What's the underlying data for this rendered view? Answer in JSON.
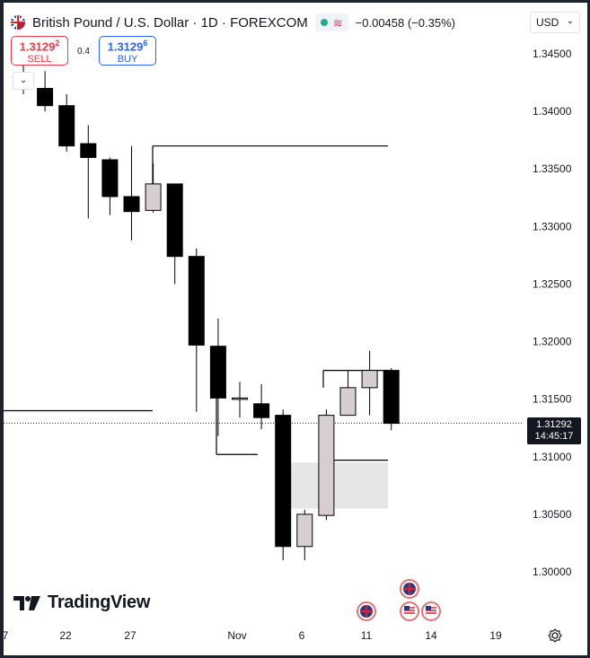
{
  "header": {
    "title": "British Pound / U.S. Dollar · 1D · FOREXCOM",
    "change": "−0.00458 (−0.35%)",
    "currency": "USD"
  },
  "trade": {
    "sell_price_main": "1.3129",
    "sell_price_sup": "2",
    "sell_label": "SELL",
    "spread": "0.4",
    "buy_price_main": "1.3129",
    "buy_price_sup": "6",
    "buy_label": "BUY"
  },
  "last_price": {
    "price": "1.31292",
    "countdown": "14:45:17"
  },
  "logo": {
    "text": "TradingView"
  },
  "icons": {
    "symbol_flag": "gbp-usd-flag-icon",
    "collapse": "chevron-down-icon",
    "settings": "settings-icon",
    "event_uk": "uk-flag-event-icon",
    "event_us": "us-flag-event-icon"
  },
  "colors": {
    "bearish": "#000000",
    "bullish": "#d7cfcf",
    "zone": "#e6e6e6",
    "price_label": "#131722"
  },
  "chart_data": {
    "type": "candlestick",
    "ylim": [
      1.2975,
      1.347
    ],
    "y_ticks": [
      "1.30000",
      "1.30500",
      "1.31000",
      "1.31500",
      "1.32000",
      "1.32500",
      "1.33000",
      "1.33500",
      "1.34000",
      "1.34500"
    ],
    "x_ticks": [
      "7",
      "22",
      "27",
      "Nov",
      "6",
      "11",
      "14",
      "19"
    ],
    "candles": [
      {
        "o": 1.3434,
        "h": 1.3455,
        "l": 1.3415,
        "c": 1.3425
      },
      {
        "o": 1.342,
        "h": 1.3435,
        "l": 1.34,
        "c": 1.3405
      },
      {
        "o": 1.3405,
        "h": 1.3415,
        "l": 1.3365,
        "c": 1.337
      },
      {
        "o": 1.3372,
        "h": 1.3388,
        "l": 1.3307,
        "c": 1.336
      },
      {
        "o": 1.3358,
        "h": 1.336,
        "l": 1.331,
        "c": 1.3326
      },
      {
        "o": 1.3326,
        "h": 1.337,
        "l": 1.3288,
        "c": 1.3313
      },
      {
        "o": 1.3314,
        "h": 1.3355,
        "l": 1.3312,
        "c": 1.3337
      },
      {
        "o": 1.3337,
        "h": 1.3337,
        "l": 1.325,
        "c": 1.3274
      },
      {
        "o": 1.3274,
        "h": 1.3281,
        "l": 1.3139,
        "c": 1.3197
      },
      {
        "o": 1.3196,
        "h": 1.322,
        "l": 1.3118,
        "c": 1.3151
      },
      {
        "o": 1.3151,
        "h": 1.3165,
        "l": 1.3134,
        "c": 1.3151
      },
      {
        "o": 1.3146,
        "h": 1.3163,
        "l": 1.3124,
        "c": 1.3134
      },
      {
        "o": 1.3136,
        "h": 1.3141,
        "l": 1.301,
        "c": 1.3022
      },
      {
        "o": 1.3022,
        "h": 1.3054,
        "l": 1.301,
        "c": 1.305
      },
      {
        "o": 1.3049,
        "h": 1.3141,
        "l": 1.3045,
        "c": 1.3136
      },
      {
        "o": 1.3136,
        "h": 1.3175,
        "l": 1.3136,
        "c": 1.316
      },
      {
        "o": 1.316,
        "h": 1.3192,
        "l": 1.3136,
        "c": 1.3175
      },
      {
        "o": 1.3175,
        "h": 1.3177,
        "l": 1.3123,
        "c": 1.3129
      }
    ],
    "horizontal_lines": [
      {
        "y": 1.337
      },
      {
        "y": 1.314
      },
      {
        "y": 1.3175
      },
      {
        "y": 1.3102
      },
      {
        "y": 1.3097
      }
    ],
    "zone": {
      "y_top": 1.3095,
      "y_bottom": 1.3055
    },
    "last_price_line": 1.31292
  }
}
